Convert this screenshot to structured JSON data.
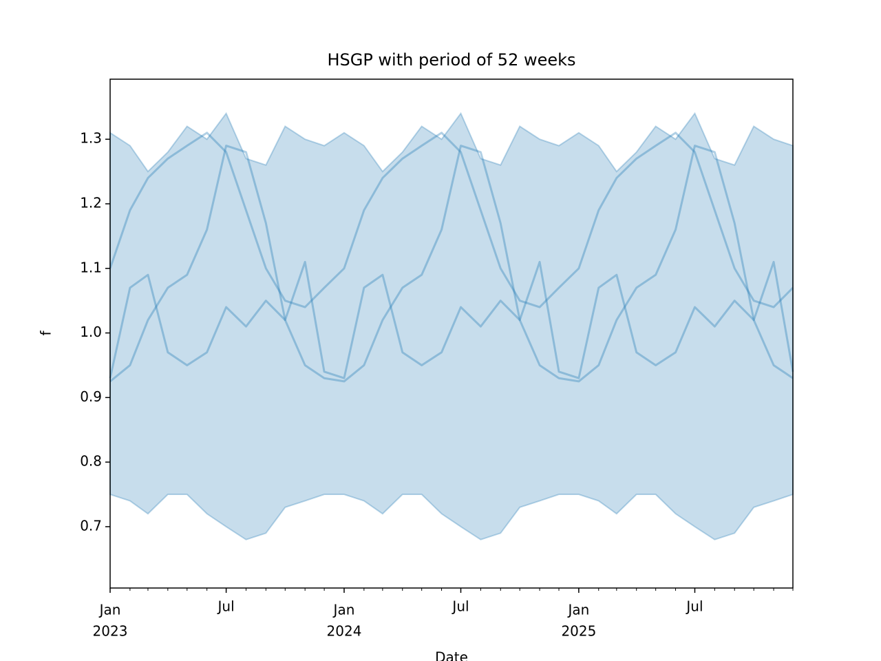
{
  "chart_data": {
    "type": "line",
    "title": "HSGP with period of 52 weeks",
    "xlabel": "Date",
    "ylabel": "f",
    "x": [
      "2023-01",
      "2023-02",
      "2023-03",
      "2023-04",
      "2023-05",
      "2023-06",
      "2023-07",
      "2023-08",
      "2023-09",
      "2023-10",
      "2023-11",
      "2023-12",
      "2024-01",
      "2024-02",
      "2024-03",
      "2024-04",
      "2024-05",
      "2024-06",
      "2024-07",
      "2024-08",
      "2024-09",
      "2024-10",
      "2024-11",
      "2024-12",
      "2025-01",
      "2025-02",
      "2025-03",
      "2025-04",
      "2025-05",
      "2025-06",
      "2025-07",
      "2025-08",
      "2025-09",
      "2025-10",
      "2025-11",
      "2025-12"
    ],
    "xlim": [
      "2023-01",
      "2025-12"
    ],
    "xticks": [
      {
        "value": "2023-01",
        "label": [
          "Jan",
          "2023"
        ]
      },
      {
        "value": "2023-07",
        "label": [
          "Jul"
        ]
      },
      {
        "value": "2024-01",
        "label": [
          "Jan",
          "2024"
        ]
      },
      {
        "value": "2024-07",
        "label": [
          "Jul"
        ]
      },
      {
        "value": "2025-01",
        "label": [
          "Jan",
          "2025"
        ]
      },
      {
        "value": "2025-07",
        "label": [
          "Jul"
        ]
      }
    ],
    "ylim": [
      0.605,
      1.393
    ],
    "yticks": [
      0.7,
      0.8,
      0.9,
      {
        "value": 1,
        "label": "1.0"
      },
      1.1,
      1.2,
      1.3
    ],
    "band": {
      "color": "#1f77b4",
      "upper": [
        1.31,
        1.29,
        1.25,
        1.28,
        1.32,
        1.3,
        1.34,
        1.27,
        1.26,
        1.32,
        1.3,
        1.29,
        1.31,
        1.29,
        1.25,
        1.28,
        1.32,
        1.3,
        1.34,
        1.27,
        1.26,
        1.32,
        1.3,
        1.29,
        1.31,
        1.29,
        1.25,
        1.28,
        1.32,
        1.3,
        1.34,
        1.27,
        1.26,
        1.32,
        1.3,
        1.29
      ],
      "lower": [
        0.75,
        0.74,
        0.72,
        0.75,
        0.75,
        0.72,
        0.7,
        0.68,
        0.69,
        0.73,
        0.74,
        0.75,
        0.75,
        0.74,
        0.72,
        0.75,
        0.75,
        0.72,
        0.7,
        0.68,
        0.69,
        0.73,
        0.74,
        0.75,
        0.75,
        0.74,
        0.72,
        0.75,
        0.75,
        0.72,
        0.7,
        0.68,
        0.69,
        0.73,
        0.74,
        0.75
      ]
    },
    "series": [
      {
        "color": "#1f77b4",
        "values": [
          1.1,
          1.19,
          1.24,
          1.27,
          1.29,
          1.31,
          1.28,
          1.19,
          1.1,
          1.05,
          1.04,
          1.07,
          1.1,
          1.19,
          1.24,
          1.27,
          1.29,
          1.31,
          1.28,
          1.19,
          1.1,
          1.05,
          1.04,
          1.07,
          1.1,
          1.19,
          1.24,
          1.27,
          1.29,
          1.31,
          1.28,
          1.19,
          1.1,
          1.05,
          1.04,
          1.07
        ]
      },
      {
        "color": "#1f77b4",
        "values": [
          0.925,
          0.95,
          1.02,
          1.07,
          1.09,
          1.16,
          1.29,
          1.28,
          1.17,
          1.02,
          0.95,
          0.93,
          0.925,
          0.95,
          1.02,
          1.07,
          1.09,
          1.16,
          1.29,
          1.28,
          1.17,
          1.02,
          0.95,
          0.93,
          0.925,
          0.95,
          1.02,
          1.07,
          1.09,
          1.16,
          1.29,
          1.28,
          1.17,
          1.02,
          0.95,
          0.93
        ]
      },
      {
        "color": "#1f77b4",
        "values": [
          0.93,
          1.07,
          1.09,
          0.97,
          0.95,
          0.97,
          1.04,
          1.01,
          1.05,
          1.02,
          1.11,
          0.94,
          0.93,
          1.07,
          1.09,
          0.97,
          0.95,
          0.97,
          1.04,
          1.01,
          1.05,
          1.02,
          1.11,
          0.94,
          0.93,
          1.07,
          1.09,
          0.97,
          0.95,
          0.97,
          1.04,
          1.01,
          1.05,
          1.02,
          1.11,
          0.94
        ]
      }
    ]
  }
}
